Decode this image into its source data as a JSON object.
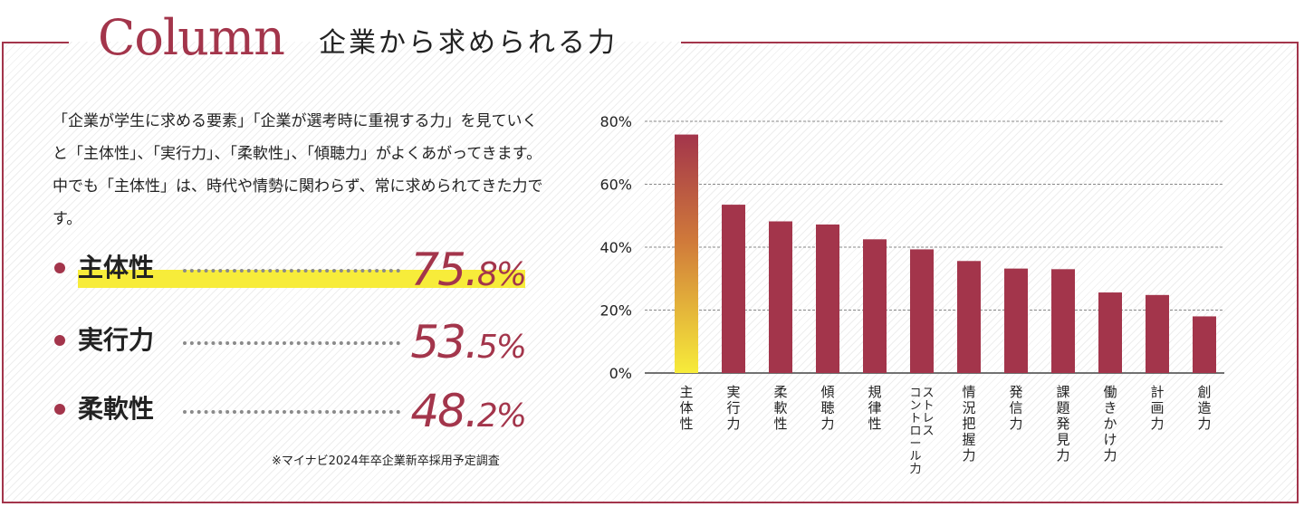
{
  "column": {
    "title": "Column",
    "subtitle": "企業から求められる力"
  },
  "intro": "「企業が学生に求める要素」「企業が選考時に重視する力」を見ていくと「主体性」、「実行力」、「柔軟性」、「傾聴力」がよくあがってきます。中でも「主体性」は、時代や情勢に関わらず、常に求められてきた力です。",
  "stats": [
    {
      "label": "主体性",
      "int": "75.",
      "dec": "8%",
      "highlight": true
    },
    {
      "label": "実行力",
      "int": "53.",
      "dec": "5%",
      "highlight": false
    },
    {
      "label": "柔軟性",
      "int": "48.",
      "dec": "2%",
      "highlight": false
    }
  ],
  "note": "※マイナビ2024年卒企業新卒採用予定調査",
  "colors": {
    "accent": "#a3354b",
    "highlight": "#f7ec3a",
    "gradient_top": "#a3354b",
    "gradient_mid": "#d07a3a",
    "gradient_bottom": "#f7ec3a"
  },
  "chart_data": {
    "type": "bar",
    "categories": [
      "主体性",
      "実行力",
      "柔軟性",
      "傾聴力",
      "規律性",
      "ストレスコントロール力",
      "情況把握力",
      "発信力",
      "課題発見力",
      "働きかけ力",
      "計画力",
      "創造力"
    ],
    "category_labels": [
      [
        "主体性"
      ],
      [
        "実行力"
      ],
      [
        "柔軟性"
      ],
      [
        "傾聴力"
      ],
      [
        "規律性"
      ],
      [
        "ストレス",
        "コントロール力"
      ],
      [
        "情況把握力"
      ],
      [
        "発信力"
      ],
      [
        "課題発見力"
      ],
      [
        "働きかけ力"
      ],
      [
        "計画力"
      ],
      [
        "創造力"
      ]
    ],
    "values": [
      75.8,
      53.5,
      48.2,
      47.2,
      42.5,
      39.3,
      35.6,
      33.2,
      33.0,
      25.6,
      24.8,
      18.0
    ],
    "ylim": [
      0,
      80
    ],
    "yticks": [
      0,
      20,
      40,
      60,
      80
    ],
    "ytick_labels": [
      "0%",
      "20%",
      "40%",
      "60%",
      "80%"
    ],
    "grid": true
  }
}
